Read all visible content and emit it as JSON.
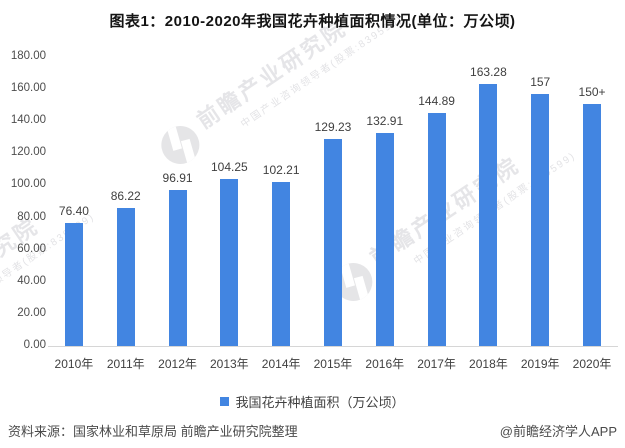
{
  "title": "图表1：2010-2020年我国花卉种植面积情况(单位：万公顷)",
  "legend": {
    "label": "我国花卉种植面积（万公顷）"
  },
  "footer": {
    "source": "资料来源：国家林业和草原局 前瞻产业研究院整理",
    "credit": "@前瞻经济学人APP"
  },
  "watermark": {
    "main": "前瞻产业研究院",
    "sub": "中国产业咨询领导者(股票:839599)"
  },
  "colors": {
    "bar": "#4285E1",
    "axis_line": "#D6D6D6",
    "label_text": "#3F3F3F"
  },
  "chart_data": {
    "type": "bar",
    "title": "图表1：2010-2020年我国花卉种植面积情况(单位：万公顷)",
    "categories": [
      "2010年",
      "2011年",
      "2012年",
      "2013年",
      "2014年",
      "2015年",
      "2016年",
      "2017年",
      "2018年",
      "2019年",
      "2020年"
    ],
    "series": [
      {
        "name": "我国花卉种植面积（万公顷）",
        "values": [
          76.4,
          86.22,
          96.91,
          104.25,
          102.21,
          129.23,
          132.91,
          144.89,
          163.28,
          157,
          150.6
        ],
        "labels": [
          "76.40",
          "86.22",
          "96.91",
          "104.25",
          "102.21",
          "129.23",
          "132.91",
          "144.89",
          "163.28",
          "157",
          "150+"
        ]
      }
    ],
    "xlabel": "",
    "ylabel": "",
    "ylim": [
      0,
      180
    ],
    "yticks": [
      "0.00",
      "20.00",
      "40.00",
      "60.00",
      "80.00",
      "100.00",
      "120.00",
      "140.00",
      "160.00",
      "180.00"
    ],
    "grid": false,
    "legend_position": "bottom"
  }
}
